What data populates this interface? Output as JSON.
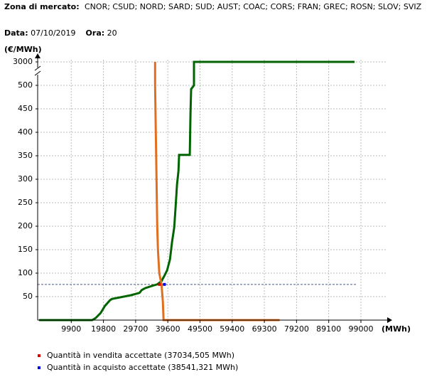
{
  "header": {
    "zone_label": "Zona di mercato:",
    "zone_value": "CNOR; CSUD; NORD; SARD; SUD; AUST; COAC; CORS; FRAN; GREC; ROSN; SLOV; SVIZ",
    "date_label": "Data:",
    "date_value": "07/10/2019",
    "hour_label": "Ora:",
    "hour_value": "20"
  },
  "chart_data": {
    "type": "line",
    "ylabel": "(€/MWh)",
    "xlabel": "(MWh)",
    "xlim": [
      0,
      106000
    ],
    "xticks": [
      9900,
      19800,
      29700,
      39600,
      49500,
      59400,
      69300,
      79200,
      89100,
      99000
    ],
    "ylim": [
      0,
      3000
    ],
    "yticks": [
      50,
      100,
      150,
      200,
      250,
      300,
      350,
      400,
      450,
      500,
      3000
    ],
    "y_break": [
      500,
      3000
    ],
    "grid": true,
    "series": [
      {
        "color": "#006400",
        "x": [
          0,
          16320,
          17410,
          18930,
          20240,
          21760,
          22410,
          28290,
          30900,
          31550,
          32640,
          34820,
          36340,
          37650,
          38520,
          39390,
          40260,
          40910,
          41560,
          42000,
          42430,
          42870,
          43080,
          46350,
          46570,
          46780,
          47650,
          47650,
          97050
        ],
        "y": [
          0,
          0,
          4.5,
          15,
          30,
          42,
          45,
          53,
          58,
          64,
          68,
          73,
          76,
          83,
          94,
          106,
          129,
          167,
          197,
          242,
          288,
          318,
          352,
          352,
          439,
          492,
          500,
          3000,
          3000
        ]
      },
      {
        "color": "#e07020",
        "x": [
          35690,
          35690,
          35900,
          36120,
          36340,
          36560,
          36990,
          37650,
          38080,
          38300,
          73980
        ],
        "y": [
          3000,
          500,
          400,
          300,
          200,
          150,
          100,
          76,
          40,
          0,
          0
        ]
      }
    ],
    "price_line": 76,
    "points": [
      {
        "name": "Quantità in vendita accettate (37034,505 MWh)",
        "color": "#e00000",
        "x": 37034.505,
        "y": 76
      },
      {
        "name": "Quantità in acquisto accettate (38541,321 MWh)",
        "color": "#0000e0",
        "x": 38541.321,
        "y": 76
      }
    ]
  }
}
